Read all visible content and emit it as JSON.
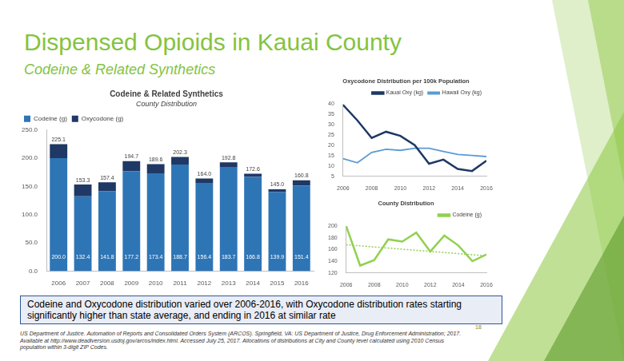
{
  "slide": {
    "title": "Dispensed Opioids in Kauai County",
    "subtitle": "Codeine & Related Synthetics",
    "caption": "Codeine and Oxycodone distribution varied over 2006-2016, with Oxycodone distribution rates starting significantly higher than state average, and ending in 2016 at similar rate",
    "source": "US Department of Justice. Automation of Reports and Consolidated Orders System (ARCOS). Springfield, VA: US Department of Justice, Drug Enforcement Administration; 2017. Available at http://www.deadiversion.usdoj.gov/arcos/index.html. Accessed July 25, 2017. Allocations of distributions at City and County level calculated using 2010 Census population within 3-digit ZIP Codes.",
    "page": "18"
  },
  "chart_data": [
    {
      "type": "bar",
      "title": "Codeine & Related Synthetics",
      "subtitle": "County Distribution",
      "categories": [
        "2006",
        "2007",
        "2008",
        "2009",
        "2010",
        "2011",
        "2012",
        "2013",
        "2014",
        "2015",
        "2016"
      ],
      "series": [
        {
          "name": "Codeine (g)",
          "color": "#2e75b6",
          "values": [
            200.0,
            132.4,
            141.8,
            177.2,
            173.4,
            188.7,
            156.4,
            183.7,
            166.8,
            139.9,
            151.4
          ],
          "value_labels": [
            "200.0",
            "132.4",
            "141.8",
            "177.2",
            "173.4",
            "188.7",
            "156.4",
            "183.7",
            "166.8",
            "139.9",
            "151.4"
          ]
        },
        {
          "name": "Oxycodone (g)",
          "color": "#1f3864",
          "values": [
            25.1,
            20.9,
            15.6,
            17.5,
            16.2,
            13.6,
            7.6,
            9.1,
            5.8,
            5.1,
            9.4
          ]
        }
      ],
      "totals": [
        225.1,
        153.3,
        157.4,
        194.7,
        189.6,
        202.3,
        164.0,
        192.8,
        172.6,
        145.0,
        160.8
      ],
      "total_labels": [
        "225.1",
        "153.3",
        "157.4",
        "194.7",
        "189.6",
        "202.3",
        "164.0",
        "192.8",
        "172.6",
        "145.0",
        "160.8"
      ],
      "stacked": true,
      "data_labels": true,
      "legend": "top-left",
      "grid": false,
      "ylim": [
        0,
        250
      ],
      "yticks": [
        {
          "value": 0,
          "label": "0.0"
        },
        {
          "value": 50,
          "label": "50.0"
        },
        {
          "value": 100,
          "label": "100.0"
        },
        {
          "value": 150,
          "label": "150.0"
        },
        {
          "value": 200,
          "label": "200.0"
        },
        {
          "value": 250,
          "label": "250.0"
        }
      ]
    },
    {
      "type": "line",
      "title": "Oxycodone Distribution per 100k Population",
      "x": [
        2006,
        2007,
        2008,
        2009,
        2010,
        2011,
        2012,
        2013,
        2014,
        2015,
        2016
      ],
      "xlim": [
        2006,
        2016
      ],
      "xticks": [
        2006,
        2008,
        2010,
        2012,
        2014,
        2016
      ],
      "ylim": [
        5,
        40
      ],
      "yticks": [
        5,
        10,
        15,
        20,
        25,
        30,
        35,
        40
      ],
      "series": [
        {
          "name": "Kauai Oxy (kg)",
          "color": "#1f3864",
          "marker": "none",
          "line_style": "solid",
          "values": [
            39.5,
            32,
            23.5,
            26.5,
            24.5,
            20,
            11,
            13,
            8.5,
            7.5,
            12.5
          ]
        },
        {
          "name": "Hawaii Oxy (kg)",
          "color": "#5b9bd5",
          "marker": "none",
          "line_style": "solid",
          "values": [
            13.5,
            11.5,
            16.5,
            18,
            17.5,
            18.5,
            18.5,
            17,
            15.5,
            15,
            14.5
          ]
        }
      ],
      "legend": "top-right",
      "grid": false
    },
    {
      "type": "line",
      "title": "County Distribution",
      "x": [
        2006,
        2007,
        2008,
        2009,
        2010,
        2011,
        2012,
        2013,
        2014,
        2015,
        2016
      ],
      "xlim": [
        2006,
        2016
      ],
      "xticks": [
        2006,
        2008,
        2010,
        2012,
        2014,
        2016
      ],
      "ylim": [
        120,
        200
      ],
      "yticks": [
        120,
        140,
        160,
        180,
        200
      ],
      "series": [
        {
          "name": "Codeine (g)",
          "color": "#92d050",
          "marker": "none",
          "line_style": "solid",
          "values": [
            200.0,
            132.4,
            141.8,
            177.2,
            173.4,
            188.7,
            156.4,
            183.7,
            166.8,
            139.9,
            151.4
          ]
        },
        {
          "color": "#92d050",
          "marker": "none",
          "line_style": "dotted",
          "x": [
            2006,
            2016
          ],
          "values": [
            168,
            149
          ]
        }
      ],
      "legend": "top-right",
      "grid": false
    }
  ]
}
